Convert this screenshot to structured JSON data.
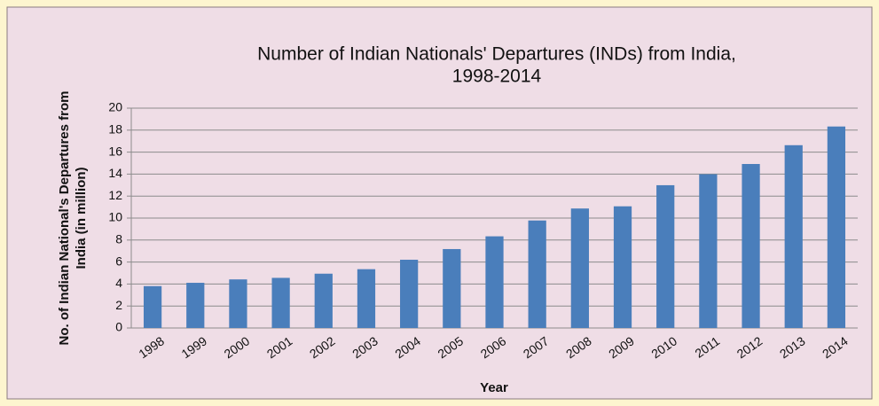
{
  "chart_data": {
    "type": "bar",
    "title": [
      "Number of  Indian Nationals' Departures (INDs) from India,",
      "1998-2014"
    ],
    "y_label": [
      "No. of Indian National's Departures from",
      "India (in million)"
    ],
    "x_label": "Year",
    "categories": [
      "1998",
      "1999",
      "2000",
      "2001",
      "2002",
      "2003",
      "2004",
      "2005",
      "2006",
      "2007",
      "2008",
      "2009",
      "2010",
      "2011",
      "2012",
      "2013",
      "2014"
    ],
    "values": [
      3.81,
      4.11,
      4.42,
      4.56,
      4.94,
      5.35,
      6.21,
      7.18,
      8.34,
      9.78,
      10.87,
      11.07,
      12.99,
      13.99,
      14.92,
      16.63,
      18.33
    ],
    "color": "#4a7ebb",
    "ylim": [
      0,
      20
    ],
    "yticks": [
      0,
      2,
      4,
      6,
      8,
      10,
      12,
      14,
      16,
      18,
      20
    ],
    "grid": true
  }
}
